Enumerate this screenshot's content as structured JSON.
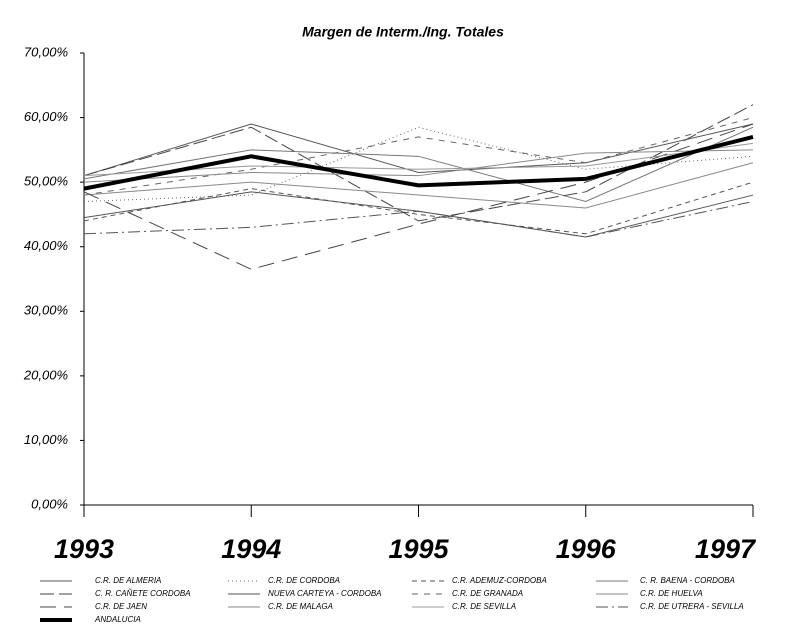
{
  "chart_data": {
    "type": "line",
    "title": "Margen de Interm./Ing. Totales",
    "categories": [
      "1993",
      "1994",
      "1995",
      "1996",
      "1997"
    ],
    "ylim": [
      0,
      70
    ],
    "yticks": [
      {
        "value": 0,
        "label": "0,00%"
      },
      {
        "value": 10,
        "label": "10,00%"
      },
      {
        "value": 20,
        "label": "20,00%"
      },
      {
        "value": 30,
        "label": "30,00%"
      },
      {
        "value": 40,
        "label": "40,00%"
      },
      {
        "value": 50,
        "label": "50,00%"
      },
      {
        "value": 60,
        "label": "60,00%"
      },
      {
        "value": 70,
        "label": "70,00%"
      }
    ],
    "grid": false,
    "series": [
      {
        "name": "C.R. DE ALMERIA",
        "color": "#555555",
        "dash": "none",
        "width": 1,
        "values": [
          51,
          59,
          51.5,
          53,
          59
        ]
      },
      {
        "name": "C.R. DE CORDOBA",
        "color": "#666666",
        "dash": "1 3",
        "width": 1,
        "values": [
          47,
          48,
          58.5,
          52,
          54
        ]
      },
      {
        "name": "C.R. ADEMUZ-CORDOBA",
        "color": "#555555",
        "dash": "5 4",
        "width": 1,
        "values": [
          44,
          49,
          45,
          42,
          50
        ]
      },
      {
        "name": "C. R. BAENA - CORDOBA",
        "color": "#777777",
        "dash": "none",
        "width": 1,
        "values": [
          50.5,
          55,
          54,
          47,
          58.5
        ]
      },
      {
        "name": "C. R. CAÑETE CORDOBA",
        "color": "#444444",
        "dash": "14 5",
        "width": 1,
        "values": [
          51,
          58.5,
          44,
          48.5,
          62
        ]
      },
      {
        "name": "NUEVA CARTEYA - CORDOBA",
        "color": "#555555",
        "dash": "none",
        "width": 1,
        "values": [
          44.5,
          48.5,
          45.5,
          41.5,
          48
        ]
      },
      {
        "name": "C.R. DE GRANADA",
        "color": "#666666",
        "dash": "6 6",
        "width": 1,
        "values": [
          48,
          52,
          57,
          53,
          60
        ]
      },
      {
        "name": "C.R. DE HUELVA",
        "color": "#888888",
        "dash": "none",
        "width": 1,
        "values": [
          48,
          50,
          48,
          46,
          53
        ]
      },
      {
        "name": "C.R. DE JAEN",
        "color": "#444444",
        "dash": "16 8",
        "width": 1,
        "values": [
          48.5,
          36.5,
          43.5,
          50,
          59
        ]
      },
      {
        "name": "C.R. DE MALAGA",
        "color": "#888888",
        "dash": "none",
        "width": 1,
        "values": [
          50,
          51.5,
          51,
          54.5,
          55
        ]
      },
      {
        "name": "C.R. DE SEVILLA",
        "color": "#999999",
        "dash": "none",
        "width": 1,
        "values": [
          51,
          52.5,
          52,
          52.5,
          56
        ]
      },
      {
        "name": "C.R. DE UTRERA - SEVILLA",
        "color": "#555555",
        "dash": "12 4 2 4",
        "width": 1,
        "values": [
          42,
          43,
          45.5,
          41.5,
          47
        ]
      },
      {
        "name": "ANDALUCIA",
        "color": "#000000",
        "dash": "none",
        "width": 4,
        "values": [
          49,
          54,
          49.5,
          50.5,
          57
        ]
      }
    ]
  }
}
